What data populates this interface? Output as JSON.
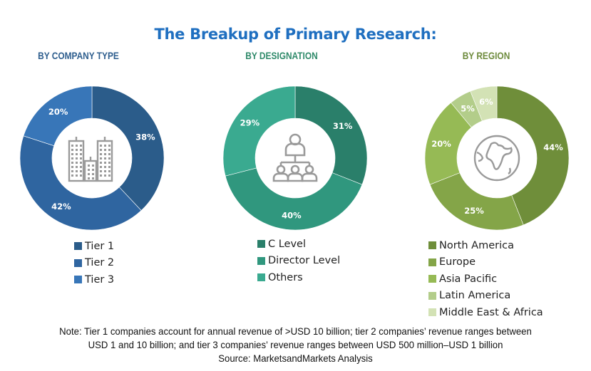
{
  "title": "The Breakup of Primary Research:",
  "note_lines": [
    "Note: Tier 1 companies account for annual revenue of >USD 10 billion; tier 2 companies’ revenue ranges between",
    "USD 1 and 10 billion; and tier 3 companies’ revenue ranges between USD 500 million–USD 1 billion",
    "Source: MarketsandMarkets Analysis"
  ],
  "chart_data": [
    {
      "type": "pie",
      "variant": "donut",
      "title": "BY COMPANY TYPE",
      "title_color": "#2E5E8E",
      "center_icon": "buildings-icon",
      "legend_position": "bottom",
      "categories": [
        "Tier 1",
        "Tier 2",
        "Tier 3"
      ],
      "values": [
        38,
        42,
        20
      ],
      "labels": [
        "38%",
        "42%",
        "20%"
      ],
      "colors": [
        "#2B5C8A",
        "#2F65A0",
        "#3876B8"
      ]
    },
    {
      "type": "pie",
      "variant": "donut",
      "title": "BY DESIGNATION",
      "title_color": "#2F8A6A",
      "center_icon": "org-hierarchy-icon",
      "legend_position": "bottom",
      "categories": [
        "C Level",
        "Director Level",
        "Others"
      ],
      "values": [
        31,
        40,
        29
      ],
      "labels": [
        "31%",
        "40%",
        "29%"
      ],
      "colors": [
        "#2A7F6A",
        "#30977E",
        "#3AAA90"
      ]
    },
    {
      "type": "pie",
      "variant": "donut",
      "title": "BY REGION",
      "title_color": "#6E8B3D",
      "center_icon": "globe-icon",
      "legend_position": "bottom",
      "categories": [
        "North America",
        "Europe",
        "Asia Pacific",
        "Latin America",
        "Middle East & Africa"
      ],
      "values": [
        44,
        25,
        20,
        5,
        6
      ],
      "labels": [
        "44%",
        "25%",
        "20%",
        "5%",
        "6%"
      ],
      "colors": [
        "#6F8E3A",
        "#84A548",
        "#96BA55",
        "#B3CD8A",
        "#D3E2B5"
      ]
    }
  ]
}
